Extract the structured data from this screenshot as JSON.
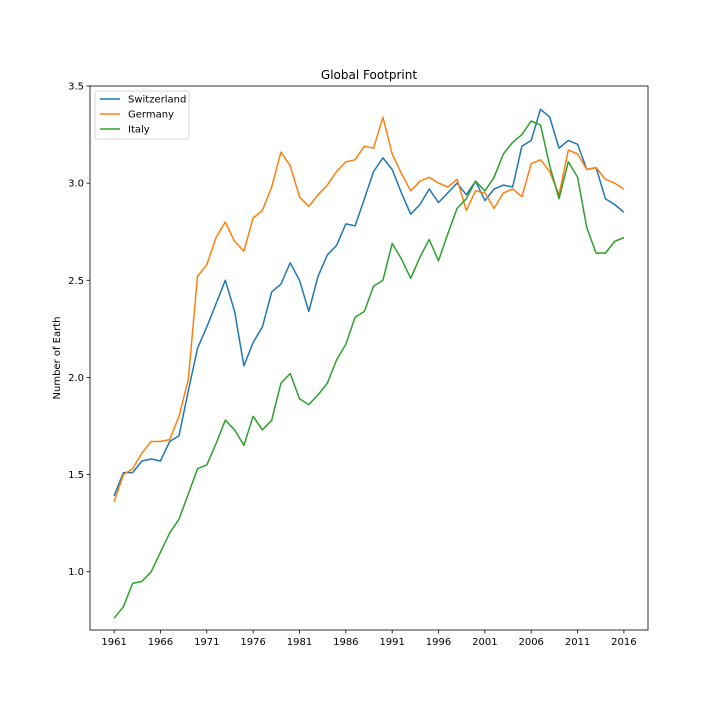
{
  "chart_data": {
    "type": "line",
    "title": "Global Footprint",
    "xlabel": "",
    "ylabel": "Number of Earth",
    "xlim": [
      1958.4,
      2018.6
    ],
    "ylim": [
      0.7,
      3.5
    ],
    "grid": false,
    "legend_position": "top-left",
    "x_ticks": [
      1961,
      1966,
      1971,
      1976,
      1981,
      1986,
      1991,
      1996,
      2001,
      2006,
      2011,
      2016
    ],
    "x_tick_labels": [
      "1961",
      "1966",
      "1971",
      "1976",
      "1981",
      "1986",
      "1991",
      "1996",
      "2001",
      "2006",
      "2011",
      "2016"
    ],
    "y_ticks": [
      1.0,
      1.5,
      2.0,
      2.5,
      3.0,
      3.5
    ],
    "y_tick_labels": [
      "1.0",
      "1.5",
      "2.0",
      "2.5",
      "3.0",
      "3.5"
    ],
    "x": [
      1961,
      1962,
      1963,
      1964,
      1965,
      1966,
      1967,
      1968,
      1969,
      1970,
      1971,
      1972,
      1973,
      1974,
      1975,
      1976,
      1977,
      1978,
      1979,
      1980,
      1981,
      1982,
      1983,
      1984,
      1985,
      1986,
      1987,
      1988,
      1989,
      1990,
      1991,
      1992,
      1993,
      1994,
      1995,
      1996,
      1997,
      1998,
      1999,
      2000,
      2001,
      2002,
      2003,
      2004,
      2005,
      2006,
      2007,
      2008,
      2009,
      2010,
      2011,
      2012,
      2013,
      2014,
      2015,
      2016
    ],
    "series": [
      {
        "name": "Switzerland",
        "color": "#1f77b4",
        "values": [
          1.39,
          1.51,
          1.51,
          1.57,
          1.58,
          1.57,
          1.67,
          1.7,
          1.93,
          2.15,
          2.26,
          2.38,
          2.5,
          2.34,
          2.06,
          2.18,
          2.26,
          2.44,
          2.48,
          2.59,
          2.5,
          2.34,
          2.52,
          2.63,
          2.68,
          2.79,
          2.78,
          2.92,
          3.06,
          3.13,
          3.07,
          2.95,
          2.84,
          2.89,
          2.97,
          2.9,
          2.95,
          3.0,
          2.94,
          3.01,
          2.91,
          2.97,
          2.99,
          2.98,
          3.19,
          3.22,
          3.38,
          3.34,
          3.18,
          3.22,
          3.2,
          3.07,
          3.08,
          2.92,
          2.89,
          2.85
        ]
      },
      {
        "name": "Germany",
        "color": "#ff7f0e",
        "values": [
          1.36,
          1.5,
          1.53,
          1.61,
          1.67,
          1.67,
          1.68,
          1.8,
          1.99,
          2.52,
          2.58,
          2.72,
          2.8,
          2.7,
          2.65,
          2.82,
          2.86,
          2.98,
          3.16,
          3.09,
          2.93,
          2.88,
          2.94,
          2.99,
          3.06,
          3.11,
          3.12,
          3.19,
          3.18,
          3.34,
          3.15,
          3.05,
          2.96,
          3.01,
          3.03,
          3.0,
          2.98,
          3.02,
          2.86,
          2.96,
          2.95,
          2.87,
          2.95,
          2.97,
          2.93,
          3.1,
          3.12,
          3.06,
          2.94,
          3.17,
          3.15,
          3.07,
          3.08,
          3.02,
          3.0,
          2.97
        ]
      },
      {
        "name": "Italy",
        "color": "#2ca02c",
        "values": [
          0.76,
          0.82,
          0.94,
          0.95,
          1.0,
          1.1,
          1.2,
          1.27,
          1.4,
          1.53,
          1.55,
          1.66,
          1.78,
          1.73,
          1.65,
          1.8,
          1.73,
          1.78,
          1.97,
          2.02,
          1.89,
          1.86,
          1.91,
          1.97,
          2.09,
          2.17,
          2.31,
          2.34,
          2.47,
          2.5,
          2.69,
          2.61,
          2.51,
          2.62,
          2.71,
          2.6,
          2.74,
          2.87,
          2.92,
          3.01,
          2.96,
          3.03,
          3.15,
          3.21,
          3.25,
          3.32,
          3.3,
          3.09,
          2.92,
          3.11,
          3.03,
          2.77,
          2.64,
          2.64,
          2.7,
          2.72
        ]
      }
    ]
  }
}
